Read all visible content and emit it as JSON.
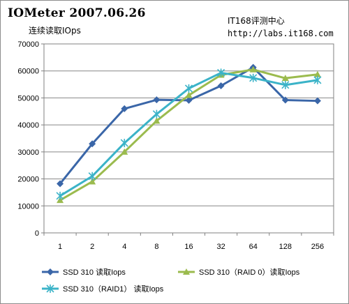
{
  "header": {
    "title": "IOMeter  2007.06.26",
    "subtitle": "连续读取IOps",
    "site_name": "IT168评测中心",
    "site_url": "http://labs.it168.com"
  },
  "chart_data": {
    "type": "line",
    "title": "IOMeter  2007.06.26",
    "subtitle": "连续读取IOps",
    "categories": [
      "1",
      "2",
      "4",
      "8",
      "16",
      "32",
      "64",
      "128",
      "256"
    ],
    "ylim": [
      0,
      70000
    ],
    "yticks": [
      0,
      10000,
      20000,
      30000,
      40000,
      50000,
      60000,
      70000
    ],
    "grid": true,
    "legend_position": "bottom",
    "series": [
      {
        "name": "SSD 310 读取Iops",
        "color": "#3a66a8",
        "marker": "diamond",
        "values": [
          18200,
          33000,
          46000,
          49300,
          49100,
          54500,
          61300,
          49200,
          48900
        ]
      },
      {
        "name": "SSD 310（RAID 0）读取Iops",
        "color": "#9bbb4e",
        "marker": "triangle",
        "values": [
          12100,
          19000,
          30000,
          41500,
          51000,
          58500,
          60500,
          57300,
          58700
        ]
      },
      {
        "name": "SSD 310（RAID1） 读取Iops",
        "color": "#3bb3c8",
        "marker": "star",
        "values": [
          13700,
          21000,
          33300,
          44000,
          53500,
          59300,
          57400,
          54800,
          56600
        ]
      }
    ]
  }
}
